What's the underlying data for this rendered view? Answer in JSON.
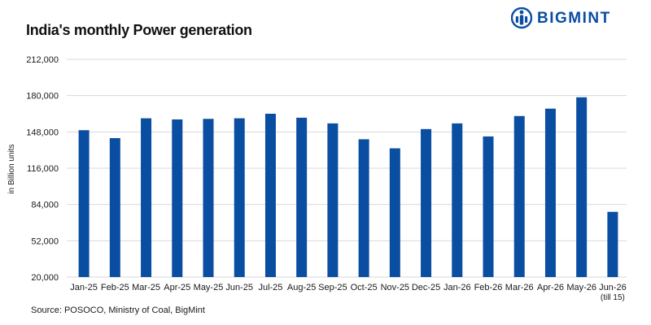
{
  "header": {
    "title": "India's monthly Power generation",
    "logo_text": "BIGMINT",
    "logo_icon": "bigmint-logo-icon"
  },
  "footer": {
    "source": "Source: POSOCO, Ministry of Coal, BigMint"
  },
  "colors": {
    "bar": "#0a4ea2",
    "grid": "#d9d9d9",
    "logo": "#0a4ea2"
  },
  "chart_data": {
    "type": "bar",
    "title": "India's monthly Power generation",
    "xlabel": "",
    "ylabel": "in Billion units",
    "ylim": [
      20000,
      212000
    ],
    "yticks": [
      20000,
      52000,
      84000,
      116000,
      148000,
      180000,
      212000
    ],
    "ytick_labels": [
      "20,000",
      "52,000",
      "84,000",
      "116,000",
      "148,000",
      "180,000",
      "212,000"
    ],
    "grid": true,
    "legend": "none",
    "categories": [
      "Jan-25",
      "Feb-25",
      "Mar-25",
      "Apr-25",
      "May-25",
      "Jun-25",
      "Jul-25",
      "Aug-25",
      "Sep-25",
      "Oct-25",
      "Nov-25",
      "Dec-25",
      "Jan-26",
      "Feb-26",
      "Mar-26",
      "Apr-26",
      "May-26",
      "Jun-26"
    ],
    "category_notes": [
      "",
      "",
      "",
      "",
      "",
      "",
      "",
      "",
      "",
      "",
      "",
      "",
      "",
      "",
      "",
      "",
      "",
      "(till 15)"
    ],
    "values": [
      149500,
      142500,
      160000,
      159000,
      159500,
      160000,
      164000,
      160500,
      155500,
      141500,
      133500,
      150500,
      155500,
      144000,
      162000,
      168500,
      178500,
      77500
    ]
  }
}
